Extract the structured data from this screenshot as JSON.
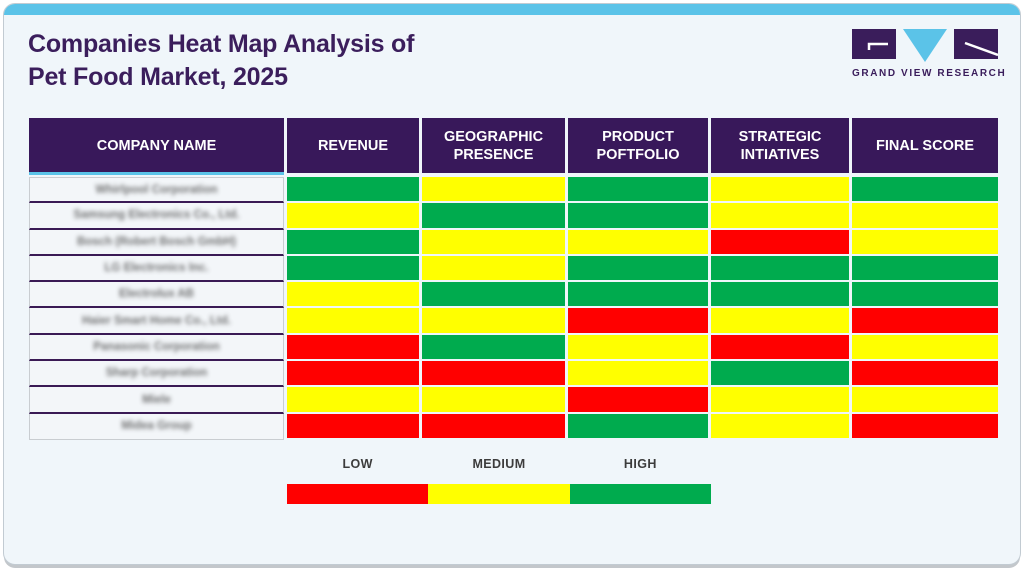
{
  "header": {
    "title_line1": "Companies Heat Map Analysis of",
    "title_line2": "Pet Food Market, 2025"
  },
  "logo": {
    "text": "GRAND VIEW RESEARCH"
  },
  "colors": {
    "low": "#FF0000",
    "medium": "#FFFF00",
    "high": "#00AB4E",
    "header_bg": "#38185A",
    "accent_blue": "#5BC3E8",
    "title_purple": "#3B1E5C",
    "card_bg": "#F0F6FA"
  },
  "table": {
    "columns": [
      "COMPANY NAME",
      "REVENUE",
      "GEOGRAPHIC PRESENCE",
      "PRODUCT POFTFOLIO",
      "STRATEGIC INTIATIVES",
      "FINAL SCORE"
    ],
    "rows": [
      {
        "company": "Whirlpool Corporation",
        "ratings": [
          "high",
          "medium",
          "high",
          "medium",
          "high"
        ]
      },
      {
        "company": "Samsung Electronics Co., Ltd.",
        "ratings": [
          "medium",
          "high",
          "high",
          "medium",
          "medium"
        ]
      },
      {
        "company": "Bosch (Robert Bosch GmbH)",
        "ratings": [
          "high",
          "medium",
          "medium",
          "low",
          "medium"
        ]
      },
      {
        "company": "LG Electronics Inc.",
        "ratings": [
          "high",
          "medium",
          "high",
          "high",
          "high"
        ]
      },
      {
        "company": "Electrolux AB",
        "ratings": [
          "medium",
          "high",
          "high",
          "high",
          "high"
        ]
      },
      {
        "company": "Haier Smart Home Co., Ltd.",
        "ratings": [
          "medium",
          "medium",
          "low",
          "medium",
          "low"
        ]
      },
      {
        "company": "Panasonic Corporation",
        "ratings": [
          "low",
          "high",
          "medium",
          "low",
          "medium"
        ]
      },
      {
        "company": "Sharp Corporation",
        "ratings": [
          "low",
          "low",
          "medium",
          "high",
          "low"
        ]
      },
      {
        "company": "Miele",
        "ratings": [
          "medium",
          "medium",
          "low",
          "medium",
          "medium"
        ]
      },
      {
        "company": "Midea Group",
        "ratings": [
          "low",
          "low",
          "high",
          "medium",
          "low"
        ]
      }
    ]
  },
  "legend": {
    "items": [
      {
        "label": "LOW",
        "key": "low"
      },
      {
        "label": "MEDIUM",
        "key": "medium"
      },
      {
        "label": "HIGH",
        "key": "high"
      }
    ]
  },
  "chart_data": {
    "type": "heatmap",
    "title": "Companies Heat Map Analysis of Pet Food Market, 2025",
    "columns": [
      "Revenue",
      "Geographic Presence",
      "Product Poftfolio",
      "Strategic Intiatives",
      "Final Score"
    ],
    "rows": [
      "Whirlpool Corporation",
      "Samsung Electronics Co., Ltd.",
      "Bosch (Robert Bosch GmbH)",
      "LG Electronics Inc.",
      "Electrolux AB",
      "Haier Smart Home Co., Ltd.",
      "Panasonic Corporation",
      "Sharp Corporation",
      "Miele",
      "Midea Group"
    ],
    "values": [
      [
        "high",
        "medium",
        "high",
        "medium",
        "high"
      ],
      [
        "medium",
        "high",
        "high",
        "medium",
        "medium"
      ],
      [
        "high",
        "medium",
        "medium",
        "low",
        "medium"
      ],
      [
        "high",
        "medium",
        "high",
        "high",
        "high"
      ],
      [
        "medium",
        "high",
        "high",
        "high",
        "high"
      ],
      [
        "medium",
        "medium",
        "low",
        "medium",
        "low"
      ],
      [
        "low",
        "high",
        "medium",
        "low",
        "medium"
      ],
      [
        "low",
        "low",
        "medium",
        "high",
        "low"
      ],
      [
        "medium",
        "medium",
        "low",
        "medium",
        "medium"
      ],
      [
        "low",
        "low",
        "high",
        "medium",
        "low"
      ]
    ],
    "scale": {
      "low": "#FF0000",
      "medium": "#FFFF00",
      "high": "#00AB4E"
    },
    "legend": [
      "LOW",
      "MEDIUM",
      "HIGH"
    ],
    "legend_position": "bottom"
  }
}
